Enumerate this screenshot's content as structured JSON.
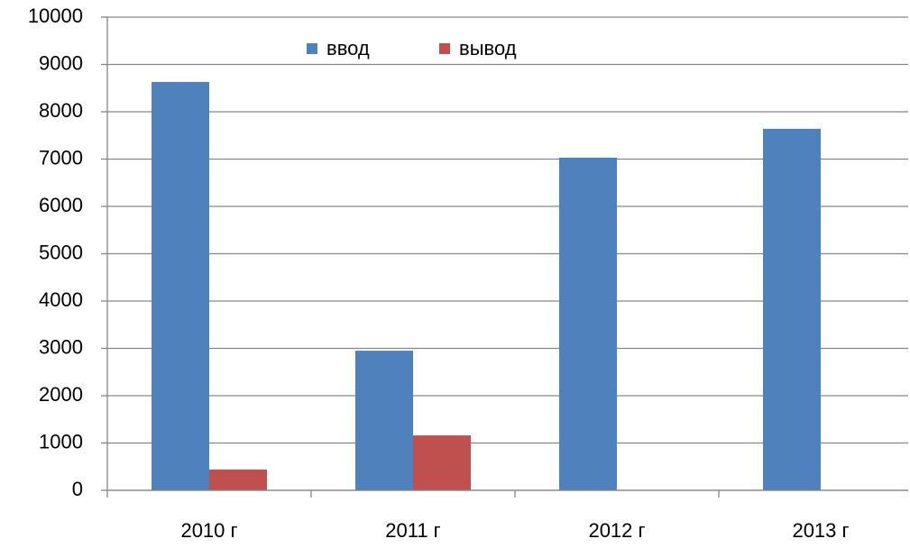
{
  "chart_data": {
    "type": "bar",
    "categories": [
      "2010 г",
      "2011 г",
      "2012 г",
      "2013 г"
    ],
    "series": [
      {
        "name": "ввод",
        "color": "#4f81bd",
        "values": [
          8630,
          2950,
          7030,
          7640
        ]
      },
      {
        "name": "вывод",
        "color": "#c0504d",
        "values": [
          440,
          1160,
          0,
          0
        ]
      }
    ],
    "ylim": [
      0,
      10000
    ],
    "yticks": [
      0,
      1000,
      2000,
      3000,
      4000,
      5000,
      6000,
      7000,
      8000,
      9000,
      10000
    ],
    "grid": true,
    "legend": "top"
  }
}
